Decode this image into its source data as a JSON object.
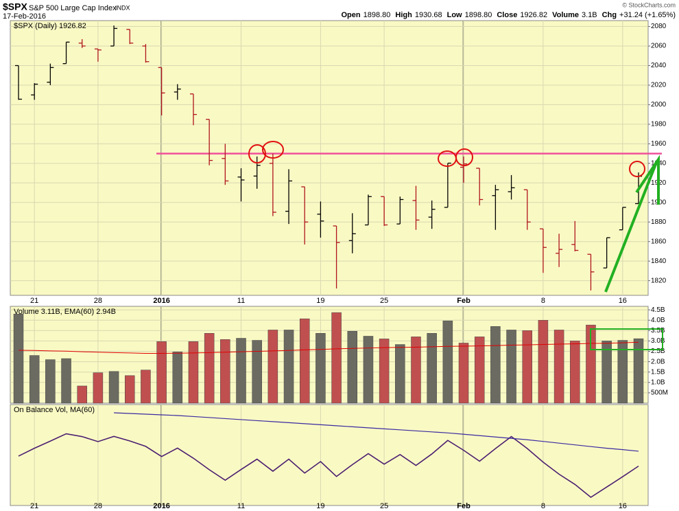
{
  "header": {
    "symbol": "$SPX",
    "name": "S&P 500 Large Cap Index",
    "exchange": "INDX",
    "date": "17-Feb-2016",
    "quote": [
      {
        "label": "Open",
        "value": "1898.80"
      },
      {
        "label": "High",
        "value": "1930.68"
      },
      {
        "label": "Low",
        "value": "1898.80"
      },
      {
        "label": "Close",
        "value": "1926.82"
      },
      {
        "label": "Volume",
        "value": "3.1B"
      },
      {
        "label": "Chg",
        "value": "+31.24 (+1.65%)"
      }
    ],
    "source": "© StockCharts.com"
  },
  "chart_data": [
    {
      "type": "ohlc",
      "title": "$SPX (Daily) 1926.82",
      "categories": [
        null,
        "21",
        null,
        null,
        null,
        "28",
        null,
        null,
        null,
        "2016",
        null,
        null,
        null,
        null,
        "11",
        null,
        null,
        null,
        null,
        "19",
        null,
        null,
        null,
        "25",
        null,
        null,
        null,
        null,
        "Feb",
        null,
        null,
        null,
        null,
        "8",
        null,
        null,
        null,
        null,
        "16",
        null
      ],
      "open": [
        2040,
        2010,
        2023,
        2042,
        2063,
        2057,
        2060,
        2077,
        2060,
        2038,
        2013,
        2011,
        1985,
        1945,
        1926,
        1927,
        1940,
        1891,
        1916,
        1888,
        1876,
        1861,
        1877,
        1906,
        1878,
        1902,
        1885,
        1895,
        1936,
        1935,
        1907,
        1911,
        1913,
        1873,
        1848,
        1857,
        1847,
        1833,
        1872,
        1898.8
      ],
      "high": [
        2040,
        2022,
        2042,
        2064,
        2067,
        2057,
        2081,
        2077,
        2062,
        2038,
        2021,
        2011,
        1985,
        1960,
        1935,
        1947,
        1950,
        1934,
        1916,
        1901,
        1876,
        1889,
        1908,
        1906,
        1906,
        1917,
        1902,
        1940,
        1947,
        1935,
        1918,
        1928,
        1913,
        1873,
        1868,
        1881,
        1847,
        1864,
        1895,
        1930.68
      ],
      "low": [
        2005,
        2005,
        2020,
        2042,
        2058,
        2044,
        2060,
        2062,
        2043,
        1989,
        2005,
        1979,
        1938,
        1918,
        1901,
        1914,
        1886,
        1878,
        1857,
        1864,
        1812,
        1848,
        1877,
        1876,
        1878,
        1872,
        1873,
        1895,
        1920,
        1897,
        1872,
        1903,
        1872,
        1828,
        1834,
        1850,
        1810,
        1833,
        1872,
        1898.8
      ],
      "close": [
        2005.6,
        2021,
        2038,
        2064,
        2060,
        2056,
        2078,
        2063,
        2044,
        2012,
        2016,
        1990,
        1943,
        1922,
        1923,
        1938,
        1890,
        1922,
        1880,
        1881,
        1859,
        1868,
        1906,
        1877,
        1903,
        1882,
        1893,
        1940.2,
        1939.4,
        1903,
        1913,
        1915,
        1880,
        1854,
        1852,
        1851,
        1829,
        1864,
        1895,
        1926.82
      ],
      "up_color": "#000000",
      "down_color": "#b0141c",
      "ylim": [
        1805,
        2086
      ],
      "yticks": [
        1820,
        1840,
        1860,
        1880,
        1900,
        1920,
        1940,
        1960,
        1980,
        2000,
        2020,
        2040,
        2060,
        2080
      ],
      "grid": true,
      "reference_line": {
        "value": 1950,
        "color": "#f0509a"
      }
    },
    {
      "type": "bar",
      "title": "Volume 3.11B, EMA(60) 2.94B",
      "values": [
        4.3,
        2.3,
        2.1,
        2.15,
        0.83,
        1.47,
        1.53,
        1.33,
        1.6,
        2.97,
        2.47,
        2.97,
        3.37,
        3.07,
        3.13,
        3.03,
        3.53,
        3.53,
        4.07,
        3.37,
        4.37,
        3.47,
        3.23,
        3.1,
        2.83,
        3.2,
        3.37,
        3.97,
        2.9,
        3.2,
        3.7,
        3.53,
        3.5,
        4.0,
        3.53,
        3.0,
        3.77,
        3.0,
        3.03,
        3.11
      ],
      "up_color": "#6b6b62",
      "down_color": "#c0504f",
      "ema": {
        "color": "#e00000",
        "values": [
          2.55,
          2.54,
          2.52,
          2.51,
          2.48,
          2.46,
          2.44,
          2.42,
          2.4,
          2.4,
          2.41,
          2.42,
          2.44,
          2.46,
          2.48,
          2.5,
          2.52,
          2.54,
          2.57,
          2.59,
          2.62,
          2.64,
          2.66,
          2.68,
          2.69,
          2.7,
          2.72,
          2.74,
          2.75,
          2.76,
          2.78,
          2.8,
          2.81,
          2.83,
          2.85,
          2.86,
          2.88,
          2.89,
          2.91,
          2.94
        ]
      },
      "ylim": [
        0,
        4.67
      ],
      "yticks": [
        {
          "value": 0.5,
          "label": "500M"
        },
        {
          "value": 1.0,
          "label": "1.0B"
        },
        {
          "value": 1.5,
          "label": "1.5B"
        },
        {
          "value": 2.0,
          "label": "2.0B"
        },
        {
          "value": 2.5,
          "label": "2.5B"
        },
        {
          "value": 3.0,
          "label": "3.0B"
        },
        {
          "value": 3.5,
          "label": "3.5B"
        },
        {
          "value": 4.0,
          "label": "4.0B"
        },
        {
          "value": 4.5,
          "label": "4.5B"
        }
      ],
      "grid": true
    },
    {
      "type": "line",
      "title": "On Balance Vol, MA(60)",
      "series": [
        {
          "color": "#4b1f70",
          "values": [
            0,
            2.3,
            4.4,
            6.55,
            5.72,
            4.25,
            5.78,
            4.45,
            2.85,
            -0.12,
            2.35,
            -0.62,
            -3.99,
            -7.06,
            -3.93,
            -0.9,
            -4.43,
            -0.9,
            -4.97,
            -1.6,
            -5.97,
            -2.5,
            0.73,
            -2.37,
            0.46,
            -2.74,
            0.63,
            4.6,
            1.7,
            -1.5,
            2.2,
            5.73,
            2.23,
            -1.77,
            -5.3,
            -8.3,
            -12.07,
            -9.07,
            -6.04,
            -2.93
          ]
        },
        {
          "color": "#3a2aa0",
          "values": [
            null,
            null,
            null,
            null,
            null,
            null,
            12.7,
            12.5,
            12.3,
            12.1,
            11.9,
            11.6,
            11.3,
            11.0,
            10.7,
            10.4,
            10.1,
            9.8,
            9.5,
            9.2,
            8.9,
            8.6,
            8.3,
            8.0,
            7.7,
            7.4,
            7.1,
            6.8,
            6.4,
            6.0,
            5.6,
            5.2,
            4.8,
            4.3,
            3.8,
            3.3,
            2.8,
            2.3,
            1.9,
            1.44
          ]
        }
      ]
    }
  ]
}
